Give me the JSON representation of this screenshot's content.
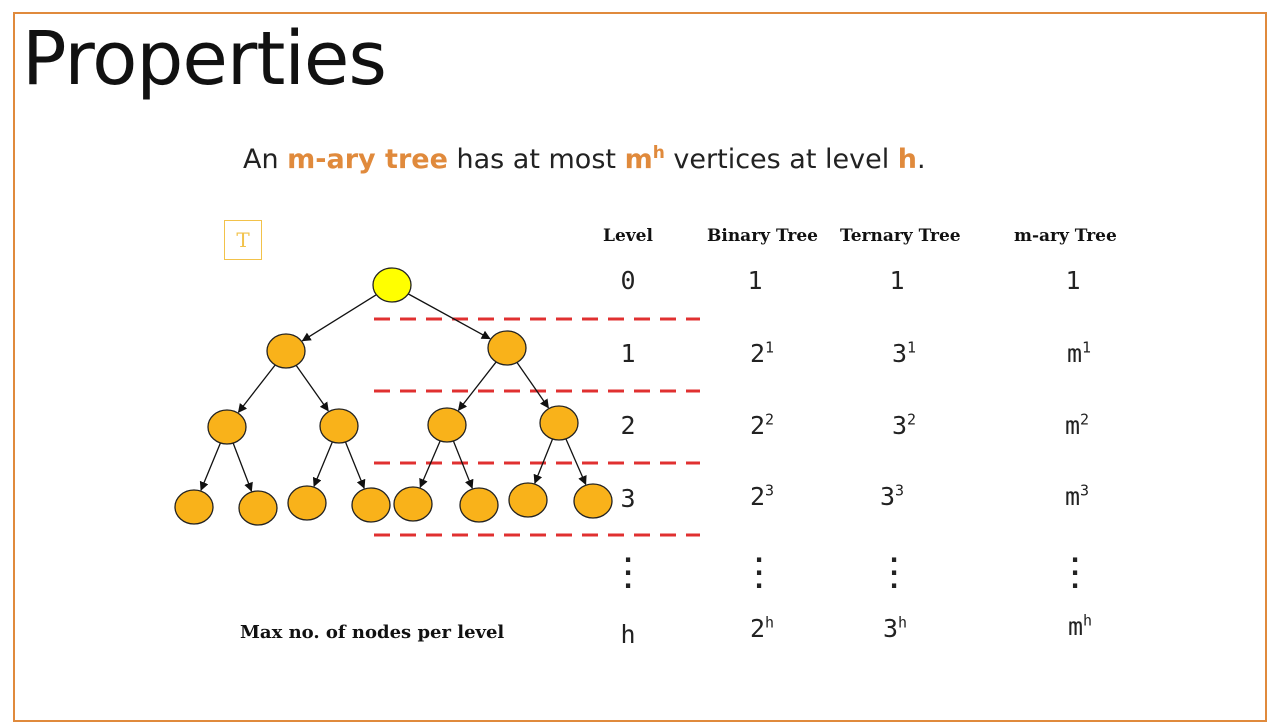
{
  "title": "Properties",
  "statement": {
    "prefix": "An ",
    "term": "m-ary tree",
    "middle": " has at most ",
    "base": "m",
    "exp": "h",
    "after": " vertices at level ",
    "level_var": "h",
    "period": "."
  },
  "tree_label": "T",
  "headers": {
    "level": "Level",
    "binary": "Binary Tree",
    "ternary": "Ternary Tree",
    "mary": "m-ary Tree"
  },
  "rows": [
    {
      "level": "0",
      "binary": {
        "base": "1",
        "exp": ""
      },
      "ternary": {
        "base": "1",
        "exp": ""
      },
      "mary": {
        "base": "1",
        "exp": ""
      }
    },
    {
      "level": "1",
      "binary": {
        "base": "2",
        "exp": "1"
      },
      "ternary": {
        "base": "3",
        "exp": "1"
      },
      "mary": {
        "base": "m",
        "exp": "1"
      }
    },
    {
      "level": "2",
      "binary": {
        "base": "2",
        "exp": "2"
      },
      "ternary": {
        "base": "3",
        "exp": "2"
      },
      "mary": {
        "base": "m",
        "exp": "2"
      }
    },
    {
      "level": "3",
      "binary": {
        "base": "2",
        "exp": "3"
      },
      "ternary": {
        "base": "3",
        "exp": "3"
      },
      "mary": {
        "base": "m",
        "exp": "3"
      }
    }
  ],
  "last_row": {
    "level": "h",
    "binary": {
      "base": "2",
      "exp": "h"
    },
    "ternary": {
      "base": "3",
      "exp": "h"
    },
    "mary": {
      "base": "m",
      "exp": "h"
    }
  },
  "footer_label": "Max no. of nodes per level",
  "colors": {
    "accent": "#e08a3c",
    "root": "#ffff00",
    "node": "#f9b21a",
    "dash": "#e03030"
  }
}
